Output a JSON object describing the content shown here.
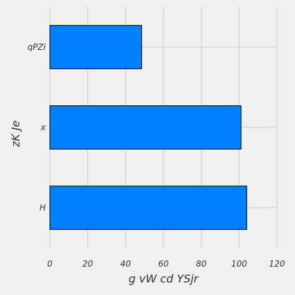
{
  "chart_data": {
    "type": "bar",
    "orientation": "horizontal",
    "categories": [
      "H",
      "x",
      "qPZi"
    ],
    "values": [
      104,
      101,
      48.5
    ],
    "xlabel": "g vW cd YSjr",
    "ylabel": "zK Je",
    "xlim": [
      0,
      120
    ],
    "xticks": [
      0,
      20,
      40,
      60,
      80,
      100,
      120
    ],
    "grid": true,
    "bar_color": "#0080ff",
    "edge_color": "#000000",
    "background": "#f0f0f0"
  }
}
